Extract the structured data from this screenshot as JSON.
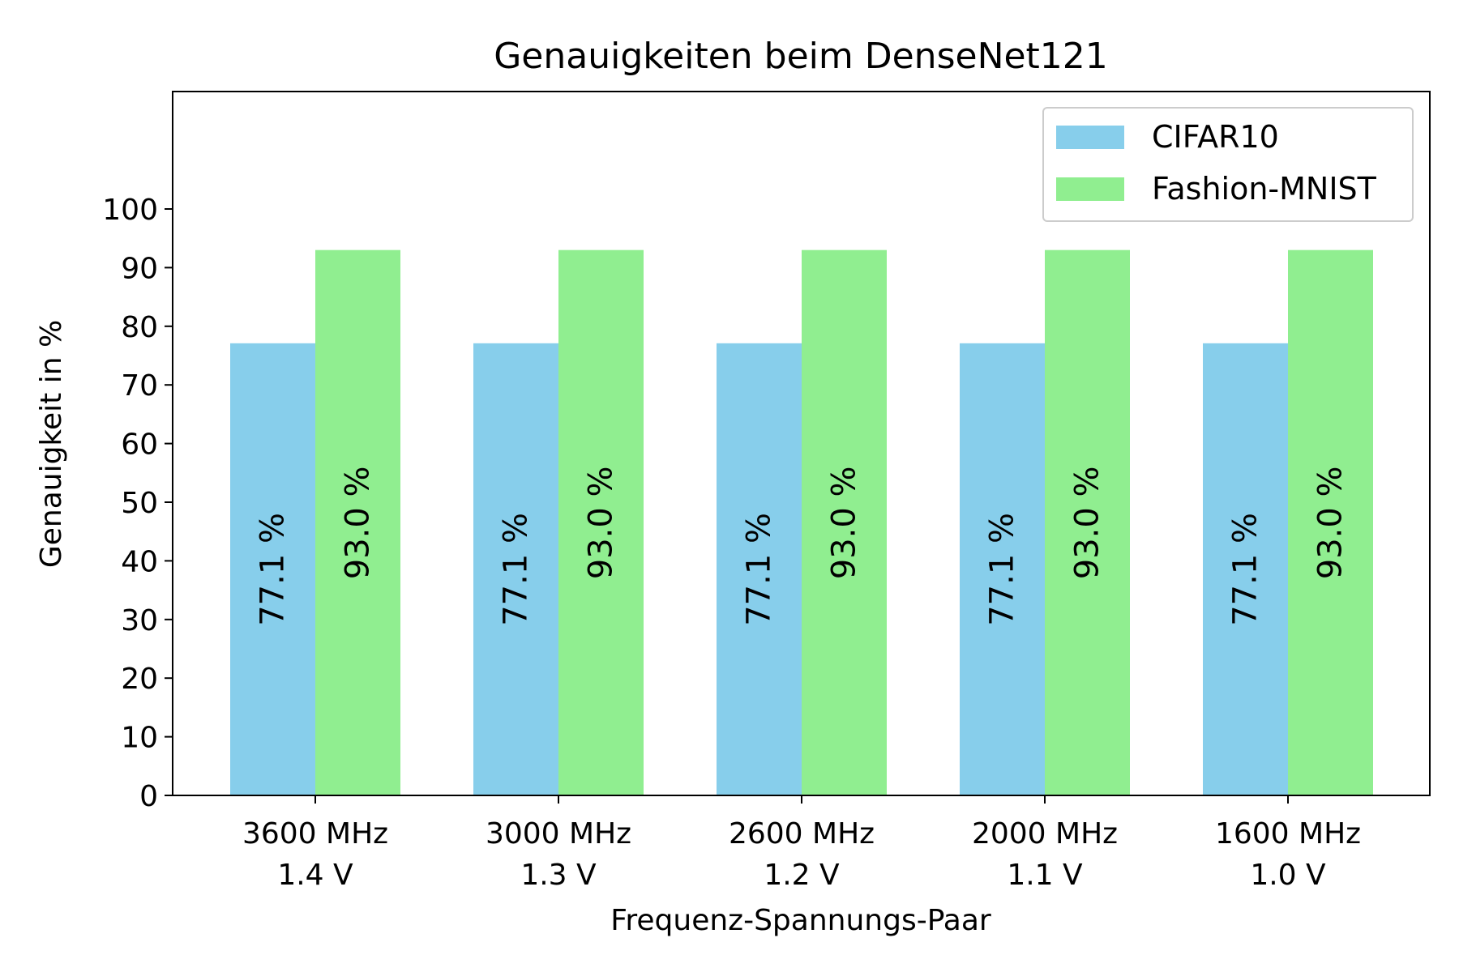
{
  "chart_data": {
    "type": "bar",
    "title": "Genauigkeiten beim DenseNet121",
    "xlabel": "Frequenz-Spannungs-Paar",
    "ylabel": "Genauigkeit in %",
    "categories": [
      [
        "3600 MHz",
        "1.4 V"
      ],
      [
        "3000 MHz",
        "1.3 V"
      ],
      [
        "2600 MHz",
        "1.2 V"
      ],
      [
        "2000 MHz",
        "1.1 V"
      ],
      [
        "1600 MHz",
        "1.0 V"
      ]
    ],
    "series": [
      {
        "name": "CIFAR10",
        "color": "#87ceeb",
        "values": [
          77.1,
          77.1,
          77.1,
          77.1,
          77.1
        ],
        "labels": [
          "77.1 %",
          "77.1 %",
          "77.1 %",
          "77.1 %",
          "77.1 %"
        ]
      },
      {
        "name": "Fashion-MNIST",
        "color": "#90ee90",
        "values": [
          93.0,
          93.0,
          93.0,
          93.0,
          93.0
        ],
        "labels": [
          "93.0 %",
          "93.0 %",
          "93.0 %",
          "93.0 %",
          "93.0 %"
        ]
      }
    ],
    "yticks": [
      0,
      10,
      20,
      30,
      40,
      50,
      60,
      70,
      80,
      90,
      100
    ],
    "ylim": [
      0,
      120
    ],
    "grid": false,
    "legend_position": "top-right"
  }
}
